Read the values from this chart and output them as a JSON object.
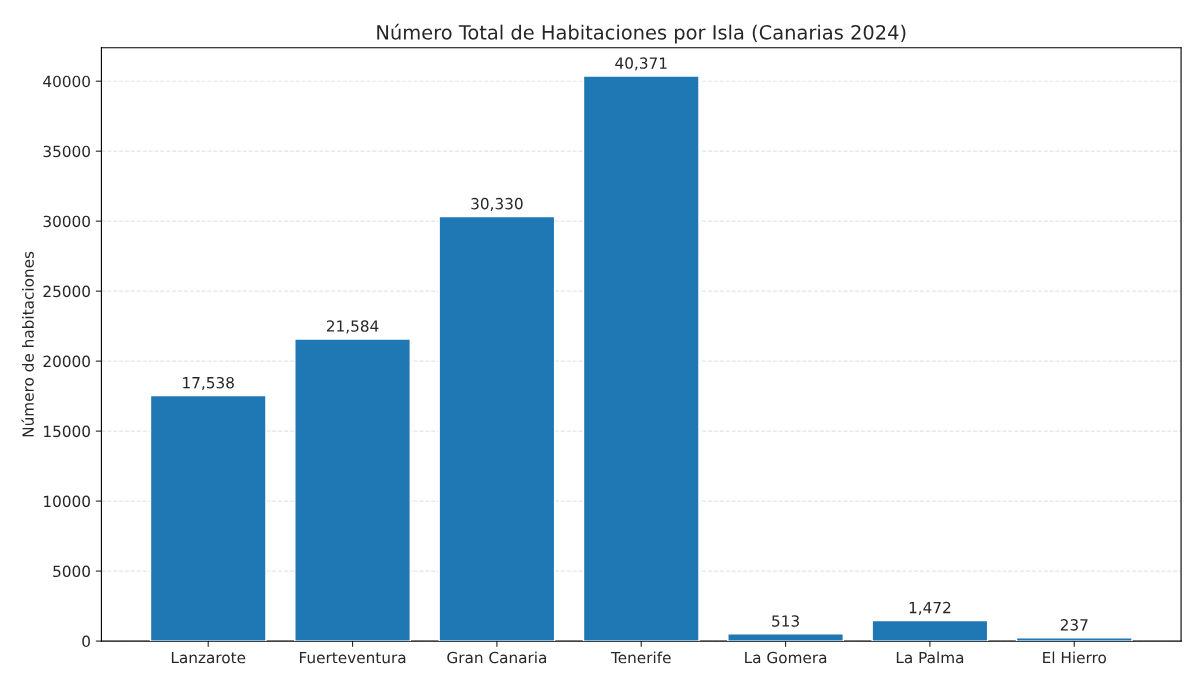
{
  "chart_data": {
    "type": "bar",
    "title": "Número Total de Habitaciones por Isla (Canarias 2024)",
    "ylabel": "Número de habitaciones",
    "categories": [
      "Lanzarote",
      "Fuerteventura",
      "Gran Canaria",
      "Tenerife",
      "La Gomera",
      "La Palma",
      "El Hierro"
    ],
    "values": [
      17538,
      21584,
      30330,
      40371,
      513,
      1472,
      237
    ],
    "value_labels": [
      "17,538",
      "21,584",
      "30,330",
      "40,371",
      "513",
      "1,472",
      "237"
    ],
    "color": "#1f77b4",
    "ylim": [
      0,
      42390
    ],
    "yticks": [
      0,
      5000,
      10000,
      15000,
      20000,
      25000,
      30000,
      35000,
      40000
    ],
    "grid": "y"
  }
}
